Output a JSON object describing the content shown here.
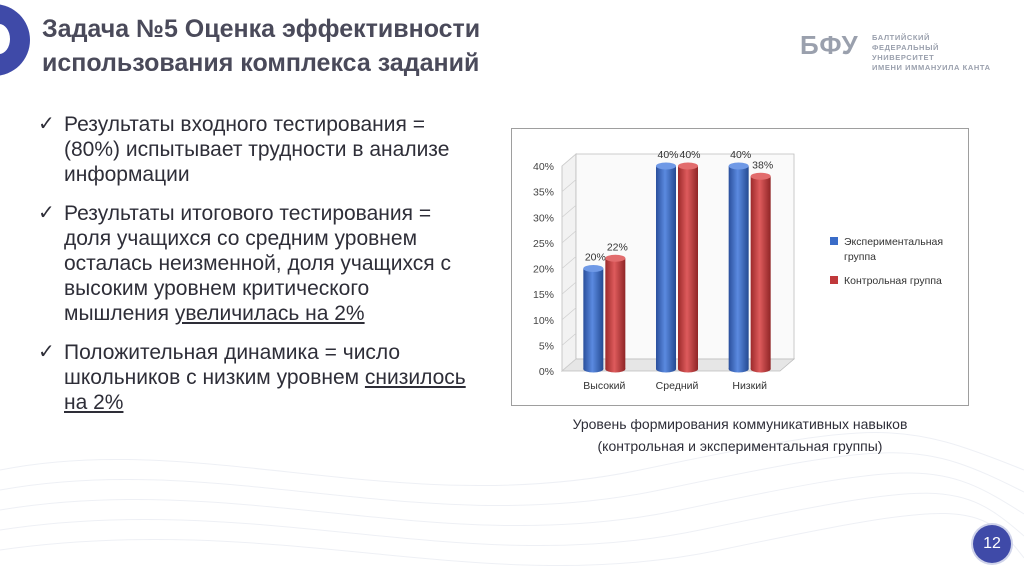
{
  "slide": {
    "title_line1": "Задача №5 Оценка эффективности",
    "title_line2": "использования комплекса заданий",
    "logo_mark": "БФУ",
    "logo_line1": "БАЛТИЙСКИЙ",
    "logo_line2": "ФЕДЕРАЛЬНЫЙ УНИВЕРСИТЕТ",
    "logo_line3": "ИМЕНИ ИММАНУИЛА КАНТА",
    "page_number": "12",
    "accent_color": "#3f4aa8"
  },
  "bullets": [
    {
      "text": "Результаты входного тестирования = (80%) испытывает трудности в анализе информации",
      "underlined": ""
    },
    {
      "text": "Результаты итогового тестирования = доля учащихся со средним уровнем осталась неизменной, доля учащихся с высоким уровнем критического мышления ",
      "underlined": "увеличилась на 2%"
    },
    {
      "text": "Положительная динамика = число школьников с низким уровнем ",
      "underlined": "снизилось на 2%"
    }
  ],
  "caption": {
    "line1": "Уровень формирования коммуникативных навыков",
    "line2": "(контрольная и экспериментальная группы)"
  },
  "chart_data": {
    "type": "bar",
    "categories": [
      "Высокий",
      "Средний",
      "Низкий"
    ],
    "series": [
      {
        "name": "Экспериментальная группа",
        "values": [
          20,
          40,
          40
        ],
        "labels": [
          "20%",
          "40%",
          "40%"
        ],
        "color": "#3a6cc8"
      },
      {
        "name": "Контрольная группа",
        "values": [
          22,
          40,
          38
        ],
        "labels": [
          "22%",
          "40%",
          "38%"
        ],
        "color": "#c0393b"
      }
    ],
    "ylim": [
      0,
      40
    ],
    "yticks": [
      "0%",
      "5%",
      "10%",
      "15%",
      "20%",
      "25%",
      "30%",
      "35%",
      "40%"
    ],
    "legend": [
      "Экспериментальная",
      "группа",
      "Контрольная группа"
    ],
    "legend_position": "right",
    "grid": false,
    "style": "3d-cylinder"
  }
}
